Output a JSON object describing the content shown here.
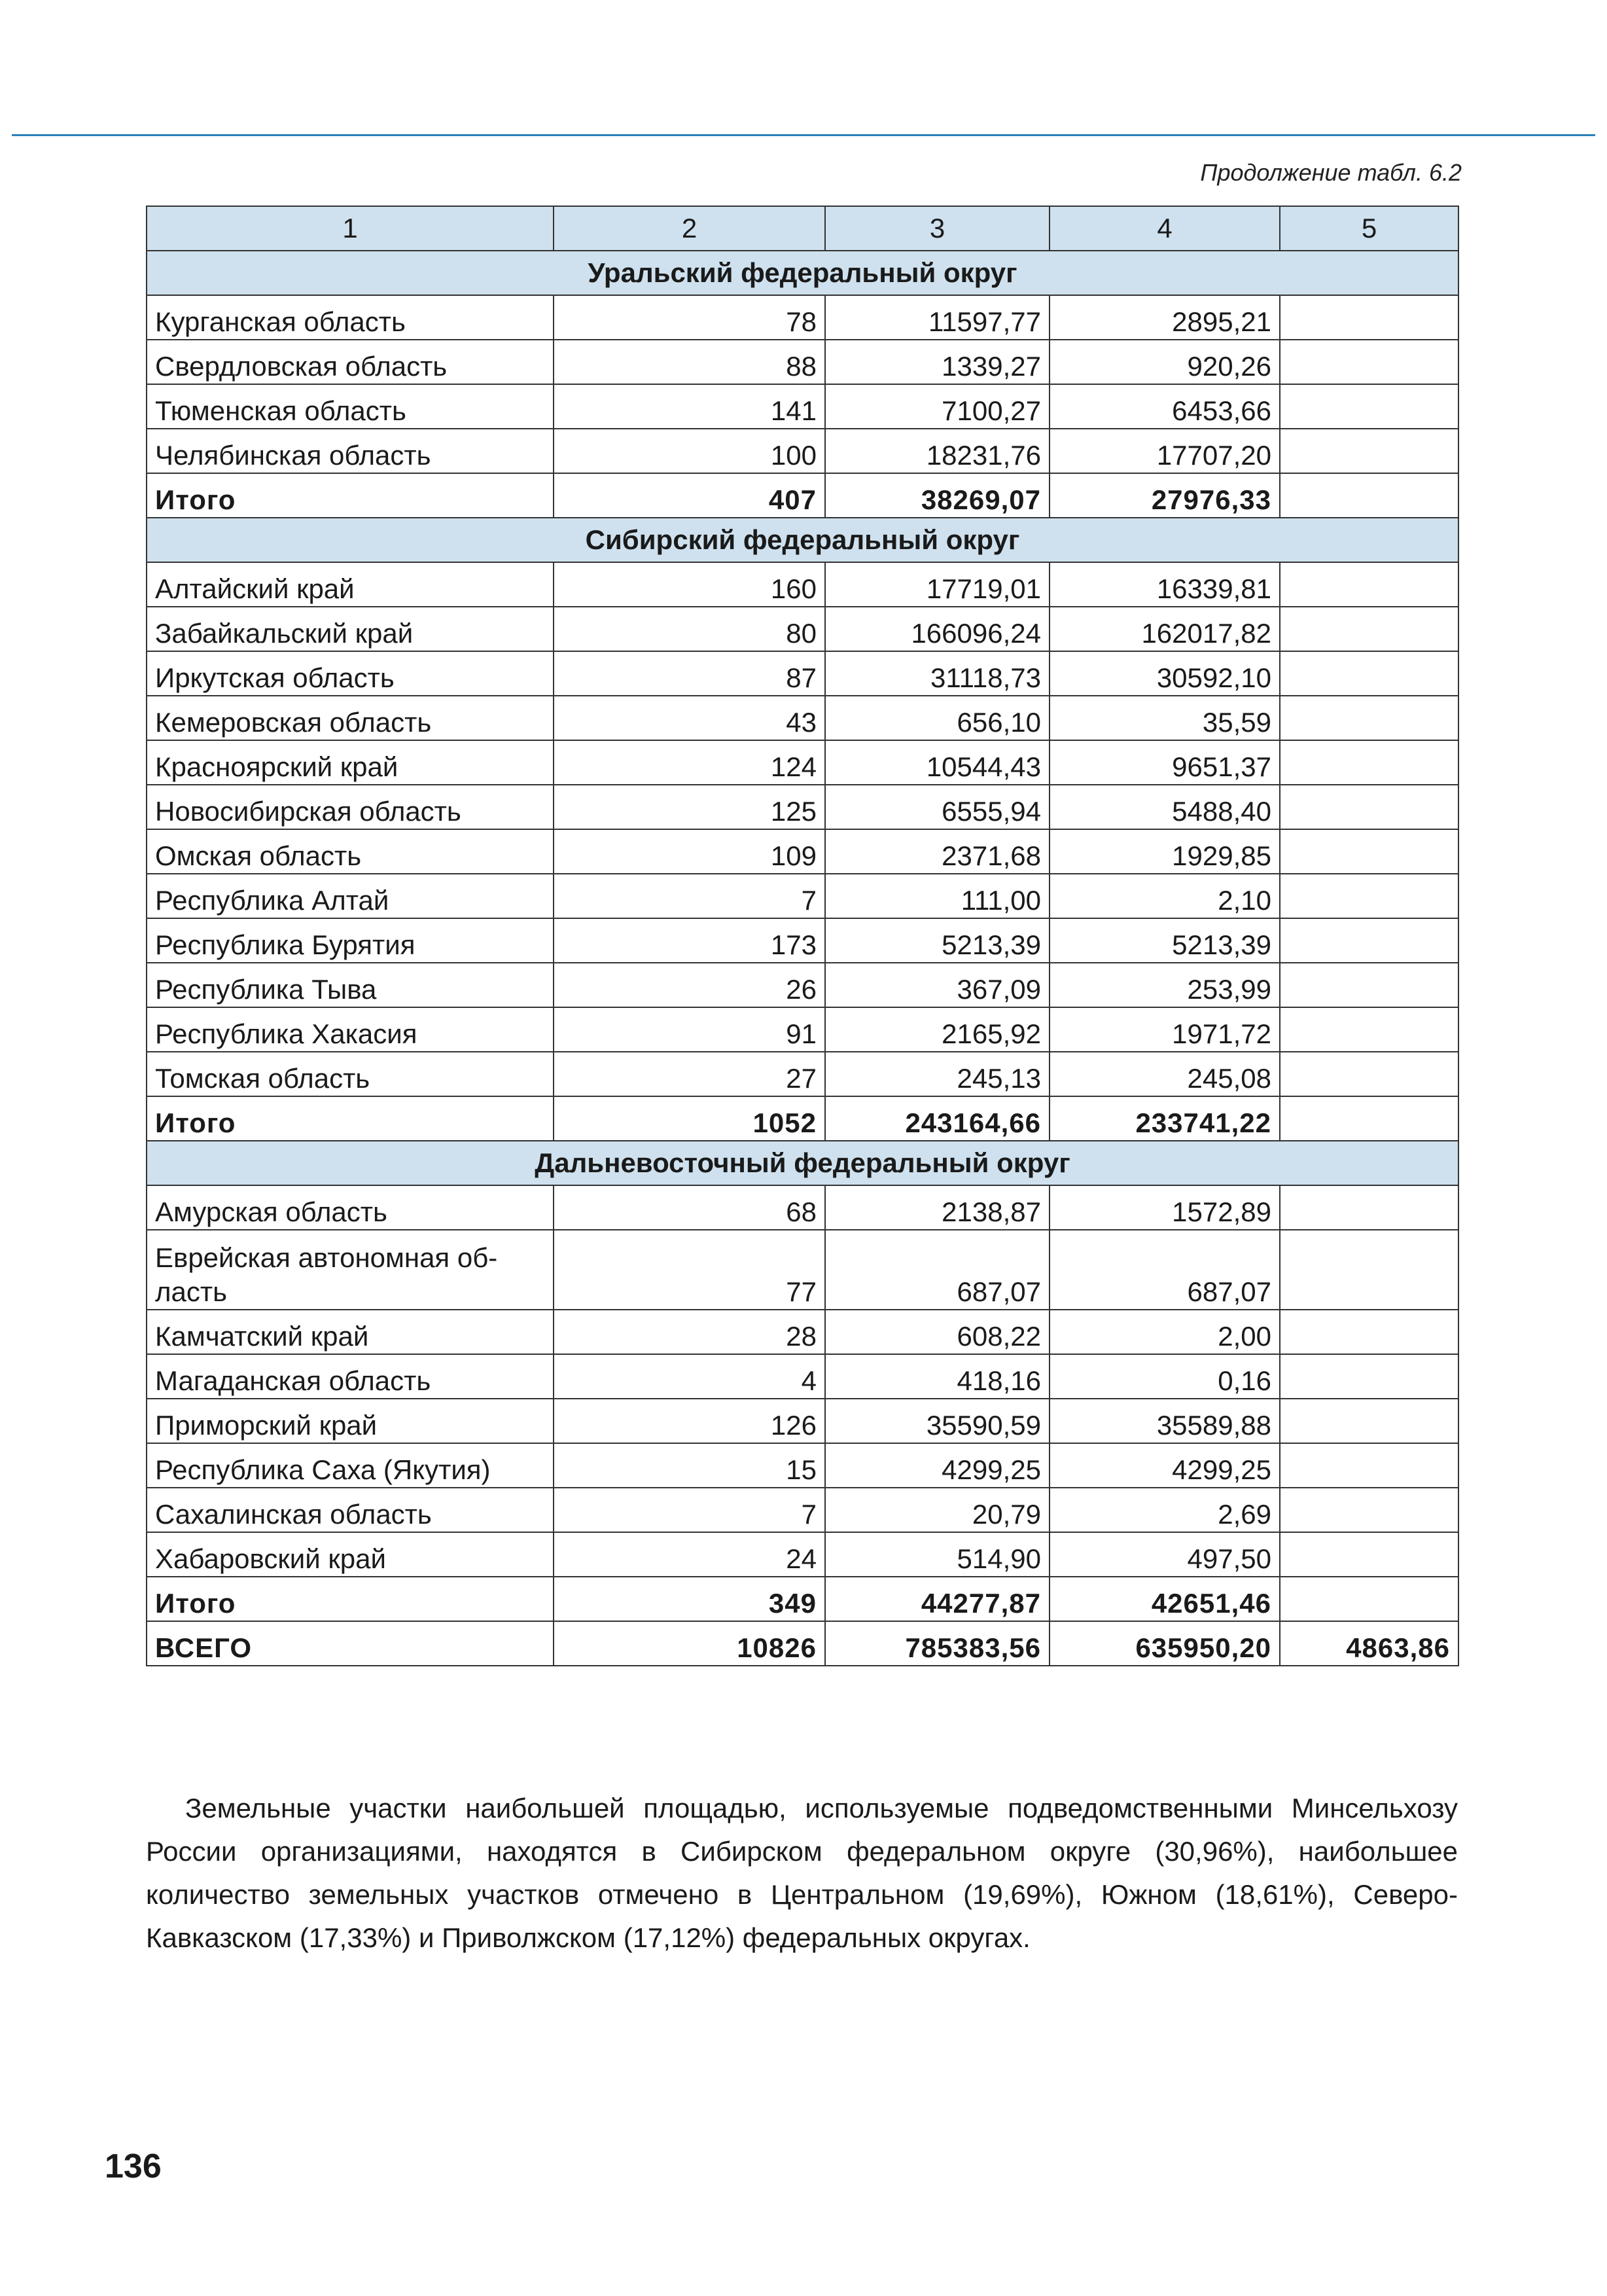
{
  "caption": "Продолжение табл. 6.2",
  "header": [
    "1",
    "2",
    "3",
    "4",
    "5"
  ],
  "sections": [
    {
      "title": "Уральский федеральный округ",
      "rows": [
        {
          "name": "Курганская область",
          "c2": "78",
          "c3": "11597,77",
          "c4": "2895,21",
          "c5": ""
        },
        {
          "name": "Свердловская область",
          "c2": "88",
          "c3": "1339,27",
          "c4": "920,26",
          "c5": ""
        },
        {
          "name": "Тюменская область",
          "c2": "141",
          "c3": "7100,27",
          "c4": "6453,66",
          "c5": ""
        },
        {
          "name": "Челябинская область",
          "c2": "100",
          "c3": "18231,76",
          "c4": "17707,20",
          "c5": ""
        }
      ],
      "total": {
        "name": "Итого",
        "c2": "407",
        "c3": "38269,07",
        "c4": "27976,33",
        "c5": ""
      }
    },
    {
      "title": "Сибирский федеральный округ",
      "rows": [
        {
          "name": "Алтайский край",
          "c2": "160",
          "c3": "17719,01",
          "c4": "16339,81",
          "c5": ""
        },
        {
          "name": "Забайкальский край",
          "c2": "80",
          "c3": "166096,24",
          "c4": "162017,82",
          "c5": ""
        },
        {
          "name": "Иркутская область",
          "c2": "87",
          "c3": "31118,73",
          "c4": "30592,10",
          "c5": ""
        },
        {
          "name": "Кемеровская область",
          "c2": "43",
          "c3": "656,10",
          "c4": "35,59",
          "c5": ""
        },
        {
          "name": "Красноярский край",
          "c2": "124",
          "c3": "10544,43",
          "c4": "9651,37",
          "c5": ""
        },
        {
          "name": "Новосибирская область",
          "c2": "125",
          "c3": "6555,94",
          "c4": "5488,40",
          "c5": ""
        },
        {
          "name": "Омская область",
          "c2": "109",
          "c3": "2371,68",
          "c4": "1929,85",
          "c5": ""
        },
        {
          "name": "Республика Алтай",
          "c2": "7",
          "c3": "111,00",
          "c4": "2,10",
          "c5": ""
        },
        {
          "name": "Республика Бурятия",
          "c2": "173",
          "c3": "5213,39",
          "c4": "5213,39",
          "c5": ""
        },
        {
          "name": "Республика Тыва",
          "c2": "26",
          "c3": "367,09",
          "c4": "253,99",
          "c5": ""
        },
        {
          "name": "Республика Хакасия",
          "c2": "91",
          "c3": "2165,92",
          "c4": "1971,72",
          "c5": ""
        },
        {
          "name": "Томская область",
          "c2": "27",
          "c3": "245,13",
          "c4": "245,08",
          "c5": ""
        }
      ],
      "total": {
        "name": "Итого",
        "c2": "1052",
        "c3": "243164,66",
        "c4": "233741,22",
        "c5": ""
      }
    },
    {
      "title": "Дальневосточный федеральный округ",
      "rows": [
        {
          "name": "Амурская область",
          "c2": "68",
          "c3": "2138,87",
          "c4": "1572,89",
          "c5": ""
        },
        {
          "name": "Еврейская автономная об-\nласть",
          "c2": "77",
          "c3": "687,07",
          "c4": "687,07",
          "c5": "",
          "tall": true
        },
        {
          "name": "Камчатский край",
          "c2": "28",
          "c3": "608,22",
          "c4": "2,00",
          "c5": ""
        },
        {
          "name": "Магаданская область",
          "c2": "4",
          "c3": "418,16",
          "c4": "0,16",
          "c5": ""
        },
        {
          "name": "Приморский край",
          "c2": "126",
          "c3": "35590,59",
          "c4": "35589,88",
          "c5": ""
        },
        {
          "name": "Республика Саха (Якутия)",
          "c2": "15",
          "c3": "4299,25",
          "c4": "4299,25",
          "c5": ""
        },
        {
          "name": "Сахалинская область",
          "c2": "7",
          "c3": "20,79",
          "c4": "2,69",
          "c5": ""
        },
        {
          "name": "Хабаровский край",
          "c2": "24",
          "c3": "514,90",
          "c4": "497,50",
          "c5": ""
        }
      ],
      "total": {
        "name": "Итого",
        "c2": "349",
        "c3": "44277,87",
        "c4": "42651,46",
        "c5": ""
      }
    }
  ],
  "grand_total": {
    "name": "ВСЕГО",
    "c2": "10826",
    "c3": "785383,56",
    "c4": "635950,20",
    "c5": "4863,86"
  },
  "paragraph": "Земельные участки наибольшей площадью, используемые подведомственными Минсельхозу России организациями, находятся в Сибирском федеральном округе (30,96%), наибольшее количество земельных участков отмечено в Центральном (19,69%), Южном (18,61%), Северо-Кавказском (17,33%) и Приволжском (17,12%) федеральных округах.",
  "page_number": "136"
}
